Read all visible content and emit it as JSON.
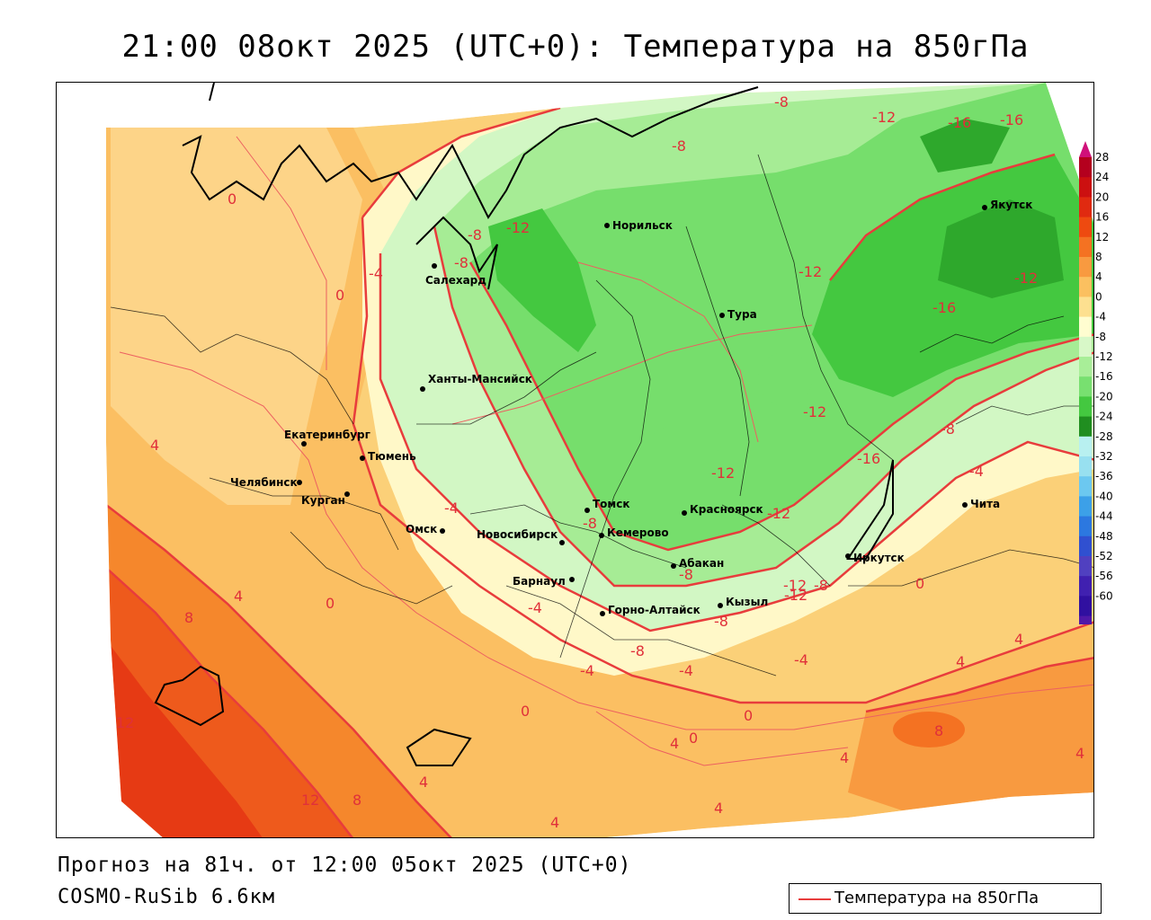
{
  "title": "21:00 08окт 2025 (UTC+0): Температура на 850гПа",
  "footer": {
    "forecast": "Прогноз на 81ч. от 12:00 05окт 2025 (UTC+0)",
    "model": "COSMO-RuSib 6.6км"
  },
  "legend": {
    "label": "Температура на 850гПа",
    "line_color": "#e83c3c"
  },
  "colorbar": {
    "labels": [
      "28",
      "24",
      "20",
      "16",
      "12",
      "8",
      "4",
      "0",
      "-4",
      "-8",
      "-12",
      "-16",
      "-20",
      "-24",
      "-28",
      "-32",
      "-36",
      "-40",
      "-44",
      "-48",
      "-52",
      "-56",
      "-60"
    ],
    "colors": [
      "#b4001e",
      "#cc1010",
      "#e02a10",
      "#ee4a10",
      "#f47222",
      "#f89a40",
      "#fbc060",
      "#fde090",
      "#fffdd0",
      "#d8f8c8",
      "#a8ee98",
      "#78e070",
      "#44c840",
      "#208e20",
      "#b8f0f0",
      "#98e0f0",
      "#6cc8f0",
      "#3ca0e8",
      "#2c78e0",
      "#3050d0",
      "#5040c0",
      "#4020b0",
      "#3010a0",
      "#5018a8"
    ]
  },
  "cities": [
    {
      "name": "Норильск"
    },
    {
      "name": "Салехард"
    },
    {
      "name": "Тура"
    },
    {
      "name": "Якутск"
    },
    {
      "name": "Ханты-Мансийск"
    },
    {
      "name": "Екатеринбург"
    },
    {
      "name": "Тюмень"
    },
    {
      "name": "Челябинск"
    },
    {
      "name": "Курган"
    },
    {
      "name": "Омск"
    },
    {
      "name": "Томск"
    },
    {
      "name": "Новосибирск"
    },
    {
      "name": "Кемерово"
    },
    {
      "name": "Красноярск"
    },
    {
      "name": "Барнаул"
    },
    {
      "name": "Абакан"
    },
    {
      "name": "Горно-Алтайск"
    },
    {
      "name": "Кызыл"
    },
    {
      "name": "Иркутск"
    },
    {
      "name": "Чита"
    }
  ],
  "isotherm_labels": [
    {
      "text": "-8"
    },
    {
      "text": "-12"
    },
    {
      "text": "-16"
    },
    {
      "text": "-16"
    },
    {
      "text": "-8"
    },
    {
      "text": "0"
    },
    {
      "text": "-8"
    },
    {
      "text": "-12"
    },
    {
      "text": "-8"
    },
    {
      "text": "-4"
    },
    {
      "text": "0"
    },
    {
      "text": "-12"
    },
    {
      "text": "-12"
    },
    {
      "text": "-16"
    },
    {
      "text": "-12"
    },
    {
      "text": "-16"
    },
    {
      "text": "-12"
    },
    {
      "text": "-8"
    },
    {
      "text": "-4"
    },
    {
      "text": "4"
    },
    {
      "text": "-4"
    },
    {
      "text": "-8"
    },
    {
      "text": "-12"
    },
    {
      "text": "-12"
    },
    {
      "text": "0"
    },
    {
      "text": "4"
    },
    {
      "text": "0"
    },
    {
      "text": "-4"
    },
    {
      "text": "-8"
    },
    {
      "text": "-12"
    },
    {
      "text": "-8"
    },
    {
      "text": "-8"
    },
    {
      "text": "8"
    },
    {
      "text": "12"
    },
    {
      "text": "-8"
    },
    {
      "text": "-4"
    },
    {
      "text": "-4"
    },
    {
      "text": "-4"
    },
    {
      "text": "0"
    },
    {
      "text": "4"
    },
    {
      "text": "0"
    },
    {
      "text": "0"
    },
    {
      "text": "4"
    },
    {
      "text": "4"
    },
    {
      "text": "8"
    },
    {
      "text": "12"
    },
    {
      "text": "8"
    },
    {
      "text": "4"
    },
    {
      "text": "4"
    },
    {
      "text": "4"
    },
    {
      "text": "4"
    },
    {
      "text": "4"
    }
  ]
}
